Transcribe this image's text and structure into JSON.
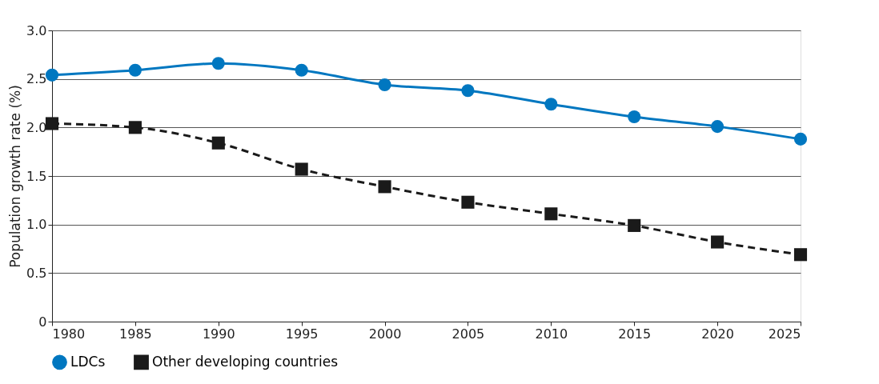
{
  "chart_data": {
    "type": "line",
    "ylabel": "Population growth rate (%)",
    "x": [
      1980,
      1985,
      1990,
      1995,
      2000,
      2005,
      2010,
      2015,
      2020,
      2025
    ],
    "series": [
      {
        "name": "LDCs",
        "color": "#0077c0",
        "marker": "circle",
        "line_style": "solid",
        "values": [
          2.54,
          2.59,
          2.66,
          2.59,
          2.44,
          2.38,
          2.24,
          2.11,
          2.01,
          1.88
        ]
      },
      {
        "name": "Other developing countries",
        "color": "#1a1a1a",
        "marker": "square",
        "line_style": "dashed",
        "values": [
          2.04,
          2.0,
          1.84,
          1.57,
          1.39,
          1.23,
          1.11,
          0.99,
          0.82,
          0.69
        ]
      }
    ],
    "xlim": [
      1980,
      2025
    ],
    "xticks": [
      1980,
      1985,
      1990,
      1995,
      2000,
      2005,
      2010,
      2015,
      2020,
      2025
    ],
    "ylim": [
      0,
      3
    ],
    "yticks": [
      0,
      {
        "value": 0.5,
        "label": "0.5"
      },
      {
        "value": 1,
        "label": "1.0"
      },
      {
        "value": 1.5,
        "label": "1.5"
      },
      {
        "value": 2,
        "label": "2.0"
      },
      {
        "value": 2.5,
        "label": "2.5"
      },
      {
        "value": 3,
        "label": "3.0"
      }
    ],
    "grid": "y",
    "legend": "bottom"
  }
}
